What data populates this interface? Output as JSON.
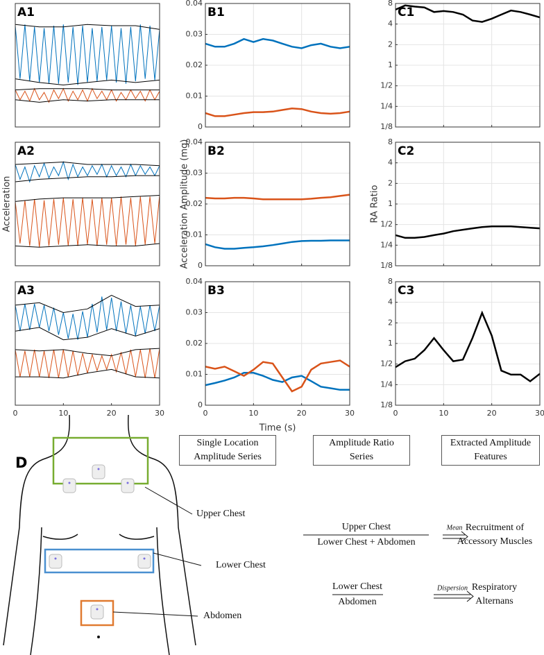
{
  "chart_data": [
    {
      "type": "line",
      "title": "A1",
      "xlim": [
        0,
        30
      ],
      "ylim": [
        0,
        10
      ],
      "x": [
        0,
        1,
        2,
        3,
        4,
        5,
        6,
        7,
        8,
        9,
        10,
        11,
        12,
        13,
        14,
        15,
        16,
        17,
        18,
        19,
        20,
        21,
        22,
        23,
        24,
        25,
        26,
        27,
        28,
        29,
        30
      ],
      "series": [
        {
          "color": "#0072bd",
          "values": [
            8.2,
            3.9,
            8.3,
            3.7,
            8.1,
            3.6,
            8.0,
            3.5,
            8.2,
            3.5,
            8.3,
            3.6,
            8.1,
            3.4,
            8.2,
            3.6,
            8.0,
            3.7,
            8.1,
            3.8,
            8.2,
            3.6,
            8.0,
            3.5,
            8.1,
            3.7,
            8.3,
            3.9,
            8.2,
            3.8,
            7.9
          ]
        },
        {
          "color": "#d95319",
          "values": [
            3.0,
            2.2,
            2.9,
            2.1,
            3.1,
            2.2,
            2.8,
            2.0,
            3.0,
            2.3,
            3.1,
            2.1,
            2.9,
            2.2,
            3.0,
            2.1,
            3.1,
            2.3,
            2.9,
            2.2,
            3.0,
            2.1,
            2.8,
            2.2,
            3.0,
            2.3,
            2.9,
            2.1,
            3.0,
            2.2,
            2.9
          ]
        }
      ],
      "envelope_x": [
        0,
        5,
        10,
        15,
        20,
        25,
        30
      ],
      "envelopes": [
        {
          "color": "#000000",
          "values": [
            8.3,
            8.1,
            8.1,
            8.3,
            8.2,
            8.2,
            7.9
          ]
        },
        {
          "color": "#000000",
          "values": [
            3.9,
            3.6,
            3.4,
            3.6,
            3.8,
            3.6,
            3.8
          ]
        },
        {
          "color": "#000000",
          "values": [
            3.0,
            3.1,
            3.1,
            3.1,
            3.0,
            3.0,
            3.0
          ]
        },
        {
          "color": "#000000",
          "values": [
            2.2,
            2.0,
            2.2,
            2.1,
            2.2,
            2.2,
            2.2
          ]
        }
      ]
    },
    {
      "type": "line",
      "title": "B1",
      "xlim": [
        0,
        30
      ],
      "ylim": [
        0,
        0.04
      ],
      "yticks": [
        0,
        0.01,
        0.02,
        0.03,
        0.04
      ],
      "xticks": [
        0,
        10,
        20,
        30
      ],
      "xtick_labels": false,
      "grid": true,
      "x": [
        0,
        2,
        4,
        6,
        8,
        10,
        12,
        14,
        16,
        18,
        20,
        22,
        24,
        26,
        28,
        30
      ],
      "series": [
        {
          "color": "#0072bd",
          "values": [
            0.027,
            0.026,
            0.026,
            0.027,
            0.0285,
            0.0275,
            0.0285,
            0.028,
            0.027,
            0.026,
            0.0255,
            0.0265,
            0.027,
            0.026,
            0.0255,
            0.026
          ]
        },
        {
          "color": "#d95319",
          "values": [
            0.0045,
            0.0035,
            0.0035,
            0.004,
            0.0045,
            0.0048,
            0.0048,
            0.005,
            0.0055,
            0.006,
            0.0058,
            0.005,
            0.0045,
            0.0043,
            0.0045,
            0.005
          ]
        }
      ]
    },
    {
      "type": "line",
      "title": "C1",
      "xlim": [
        0,
        30
      ],
      "ylim": [
        0.125,
        8
      ],
      "log_scale": true,
      "xticks": [
        0,
        10,
        20,
        30
      ],
      "xtick_labels": false,
      "grid": true,
      "yticks": [
        {
          "value": 0.125,
          "label": "1/8"
        },
        {
          "value": 0.25,
          "label": "1/4"
        },
        {
          "value": 0.5,
          "label": "1/2"
        },
        1,
        2,
        4,
        8
      ],
      "x": [
        0,
        2,
        4,
        6,
        8,
        10,
        12,
        14,
        16,
        18,
        20,
        22,
        24,
        26,
        28,
        30
      ],
      "series": [
        {
          "color": "#000000",
          "values": [
            6.5,
            7.5,
            7.2,
            7.0,
            6.0,
            6.2,
            6.0,
            5.5,
            4.5,
            4.3,
            4.8,
            5.5,
            6.3,
            6.0,
            5.5,
            5.0
          ]
        }
      ]
    },
    {
      "type": "line",
      "title": "A2",
      "ylabel": "Acceleration",
      "xlim": [
        0,
        30
      ],
      "ylim": [
        0,
        10
      ],
      "x": [
        0,
        1,
        2,
        3,
        4,
        5,
        6,
        7,
        8,
        9,
        10,
        11,
        12,
        13,
        14,
        15,
        16,
        17,
        18,
        19,
        20,
        21,
        22,
        23,
        24,
        25,
        26,
        27,
        28,
        29,
        30
      ],
      "series": [
        {
          "color": "#0072bd",
          "values": [
            8.2,
            7.0,
            8.0,
            6.8,
            8.1,
            7.2,
            8.3,
            7.1,
            8.0,
            7.3,
            8.4,
            7.0,
            8.2,
            7.2,
            8.0,
            7.3,
            8.1,
            7.4,
            8.2,
            7.2,
            8.1,
            7.3,
            8.0,
            7.2,
            8.2,
            7.3,
            8.1,
            7.4,
            8.0,
            7.3,
            8.1
          ]
        },
        {
          "color": "#d95319",
          "values": [
            5.2,
            1.8,
            5.3,
            1.6,
            5.4,
            1.5,
            5.3,
            1.6,
            5.4,
            1.7,
            5.5,
            1.6,
            5.4,
            1.6,
            5.5,
            1.7,
            5.4,
            1.6,
            5.5,
            1.7,
            5.5,
            1.6,
            5.6,
            1.7,
            5.5,
            1.6,
            5.6,
            1.7,
            5.6,
            1.8,
            5.7
          ]
        }
      ],
      "envelope_x": [
        0,
        5,
        10,
        15,
        20,
        25,
        30
      ],
      "envelopes": [
        {
          "color": "#000000",
          "values": [
            8.2,
            8.3,
            8.4,
            8.2,
            8.2,
            8.2,
            8.1
          ]
        },
        {
          "color": "#000000",
          "values": [
            6.8,
            7.0,
            7.1,
            7.2,
            7.2,
            7.3,
            7.3
          ]
        },
        {
          "color": "#000000",
          "values": [
            5.2,
            5.4,
            5.5,
            5.5,
            5.5,
            5.6,
            5.7
          ]
        },
        {
          "color": "#000000",
          "values": [
            1.6,
            1.5,
            1.6,
            1.7,
            1.6,
            1.6,
            1.8
          ]
        }
      ]
    },
    {
      "type": "line",
      "title": "B2",
      "ylabel": "Acceleration Amplitude (mg)",
      "xlim": [
        0,
        30
      ],
      "ylim": [
        0,
        0.04
      ],
      "yticks": [
        0,
        0.01,
        0.02,
        0.03,
        0.04
      ],
      "xticks": [
        0,
        10,
        20,
        30
      ],
      "xtick_labels": false,
      "grid": true,
      "x": [
        0,
        2,
        4,
        6,
        8,
        10,
        12,
        14,
        16,
        18,
        20,
        22,
        24,
        26,
        28,
        30
      ],
      "series": [
        {
          "color": "#d95319",
          "values": [
            0.022,
            0.0218,
            0.0218,
            0.022,
            0.022,
            0.0218,
            0.0215,
            0.0215,
            0.0215,
            0.0215,
            0.0215,
            0.0217,
            0.022,
            0.0222,
            0.0226,
            0.023
          ]
        },
        {
          "color": "#0072bd",
          "values": [
            0.007,
            0.006,
            0.0055,
            0.0055,
            0.0058,
            0.006,
            0.0063,
            0.0067,
            0.0072,
            0.0077,
            0.008,
            0.0081,
            0.0081,
            0.0082,
            0.0082,
            0.0082
          ]
        }
      ]
    },
    {
      "type": "line",
      "title": "C2",
      "ylabel": "RA Ratio",
      "xlim": [
        0,
        30
      ],
      "ylim": [
        0.125,
        8
      ],
      "log_scale": true,
      "xticks": [
        0,
        10,
        20,
        30
      ],
      "xtick_labels": false,
      "grid": true,
      "yticks": [
        {
          "value": 0.125,
          "label": "1/8"
        },
        {
          "value": 0.25,
          "label": "1/4"
        },
        {
          "value": 0.5,
          "label": "1/2"
        },
        1,
        2,
        4,
        8
      ],
      "x": [
        0,
        2,
        4,
        6,
        8,
        10,
        12,
        14,
        16,
        18,
        20,
        22,
        24,
        26,
        28,
        30
      ],
      "series": [
        {
          "color": "#000000",
          "values": [
            0.35,
            0.32,
            0.32,
            0.33,
            0.35,
            0.37,
            0.4,
            0.42,
            0.44,
            0.46,
            0.47,
            0.47,
            0.47,
            0.46,
            0.45,
            0.44
          ]
        }
      ]
    },
    {
      "type": "line",
      "title": "A3",
      "xlim": [
        0,
        30
      ],
      "ylim": [
        0,
        10
      ],
      "xticks": [
        0,
        10,
        20,
        30
      ],
      "x": [
        0,
        1,
        2,
        3,
        4,
        5,
        6,
        7,
        8,
        9,
        10,
        11,
        12,
        13,
        14,
        15,
        16,
        17,
        18,
        19,
        20,
        21,
        22,
        23,
        24,
        25,
        26,
        27,
        28,
        29,
        30
      ],
      "series": [
        {
          "color": "#0072bd",
          "values": [
            8.1,
            6.0,
            8.2,
            6.1,
            8.2,
            6.3,
            8.1,
            6.0,
            7.9,
            5.7,
            7.5,
            5.4,
            7.4,
            5.3,
            7.6,
            5.5,
            8.2,
            5.9,
            8.8,
            6.1,
            8.7,
            6.0,
            8.4,
            5.8,
            8.1,
            5.6,
            8.0,
            5.8,
            8.1,
            6.0,
            8.1
          ]
        },
        {
          "color": "#d95319",
          "values": [
            4.5,
            2.3,
            4.4,
            2.3,
            4.5,
            2.3,
            4.4,
            2.2,
            4.5,
            2.2,
            4.5,
            2.3,
            4.4,
            2.4,
            4.2,
            2.6,
            4.1,
            2.8,
            4.0,
            2.9,
            4.1,
            2.7,
            4.3,
            2.5,
            4.5,
            2.3,
            4.5,
            2.2,
            4.6,
            2.2,
            4.6
          ]
        }
      ],
      "envelope_x": [
        0,
        5,
        10,
        15,
        20,
        25,
        30
      ],
      "envelopes": [
        {
          "color": "#000000",
          "values": [
            8.1,
            8.3,
            7.5,
            7.8,
            8.9,
            8.0,
            8.1
          ]
        },
        {
          "color": "#000000",
          "values": [
            6.0,
            6.3,
            5.3,
            5.5,
            6.2,
            5.6,
            6.2
          ]
        },
        {
          "color": "#000000",
          "values": [
            4.5,
            4.4,
            4.5,
            4.2,
            4.0,
            4.5,
            4.6
          ]
        },
        {
          "color": "#000000",
          "values": [
            2.3,
            2.3,
            2.2,
            2.6,
            2.9,
            2.3,
            2.2
          ]
        }
      ]
    },
    {
      "type": "line",
      "title": "B3",
      "xlabel": "Time (s)",
      "xlim": [
        0,
        30
      ],
      "ylim": [
        0,
        0.04
      ],
      "yticks": [
        0,
        0.01,
        0.02,
        0.03,
        0.04
      ],
      "xticks": [
        0,
        10,
        20,
        30
      ],
      "grid": true,
      "x": [
        0,
        2,
        4,
        6,
        8,
        10,
        12,
        14,
        16,
        18,
        20,
        22,
        24,
        26,
        28,
        30
      ],
      "series": [
        {
          "color": "#0072bd",
          "values": [
            0.0065,
            0.0072,
            0.008,
            0.009,
            0.0105,
            0.0105,
            0.0095,
            0.0082,
            0.0075,
            0.009,
            0.0095,
            0.0078,
            0.006,
            0.0055,
            0.005,
            0.005
          ]
        },
        {
          "color": "#d95319",
          "values": [
            0.0125,
            0.0118,
            0.0125,
            0.011,
            0.0095,
            0.0115,
            0.014,
            0.0135,
            0.009,
            0.0045,
            0.006,
            0.0115,
            0.0135,
            0.014,
            0.0145,
            0.0125
          ]
        }
      ]
    },
    {
      "type": "line",
      "title": "C3",
      "xlim": [
        0,
        30
      ],
      "ylim": [
        0.125,
        8
      ],
      "log_scale": true,
      "xticks": [
        0,
        10,
        20,
        30
      ],
      "grid": true,
      "yticks": [
        {
          "value": 0.125,
          "label": "1/8"
        },
        {
          "value": 0.25,
          "label": "1/4"
        },
        {
          "value": 0.5,
          "label": "1/2"
        },
        1,
        2,
        4,
        8
      ],
      "x": [
        0,
        2,
        4,
        6,
        8,
        10,
        12,
        14,
        16,
        18,
        20,
        22,
        24,
        26,
        28,
        30
      ],
      "series": [
        {
          "color": "#000000",
          "values": [
            0.45,
            0.55,
            0.6,
            0.8,
            1.2,
            0.8,
            0.55,
            0.58,
            1.2,
            2.8,
            1.3,
            0.4,
            0.35,
            0.35,
            0.28,
            0.36
          ]
        }
      ]
    }
  ],
  "diagram": {
    "label": "D",
    "headers": [
      "Single Location Amplitude Series",
      "Amplitude Ratio Series",
      "Extracted Amplitude Features"
    ],
    "locations": [
      "Upper Chest",
      "Lower Chest",
      "Abdomen"
    ],
    "ratios": [
      {
        "numerator": "Upper Chest",
        "denominator": "Lower Chest + Abdomen",
        "operator": "Mean",
        "feature": "Recruitment of Accessory Muscles"
      },
      {
        "numerator": "Lower Chest",
        "denominator": "Abdomen",
        "operator": "Dispersion",
        "feature": "Respiratory Alternans"
      }
    ]
  }
}
